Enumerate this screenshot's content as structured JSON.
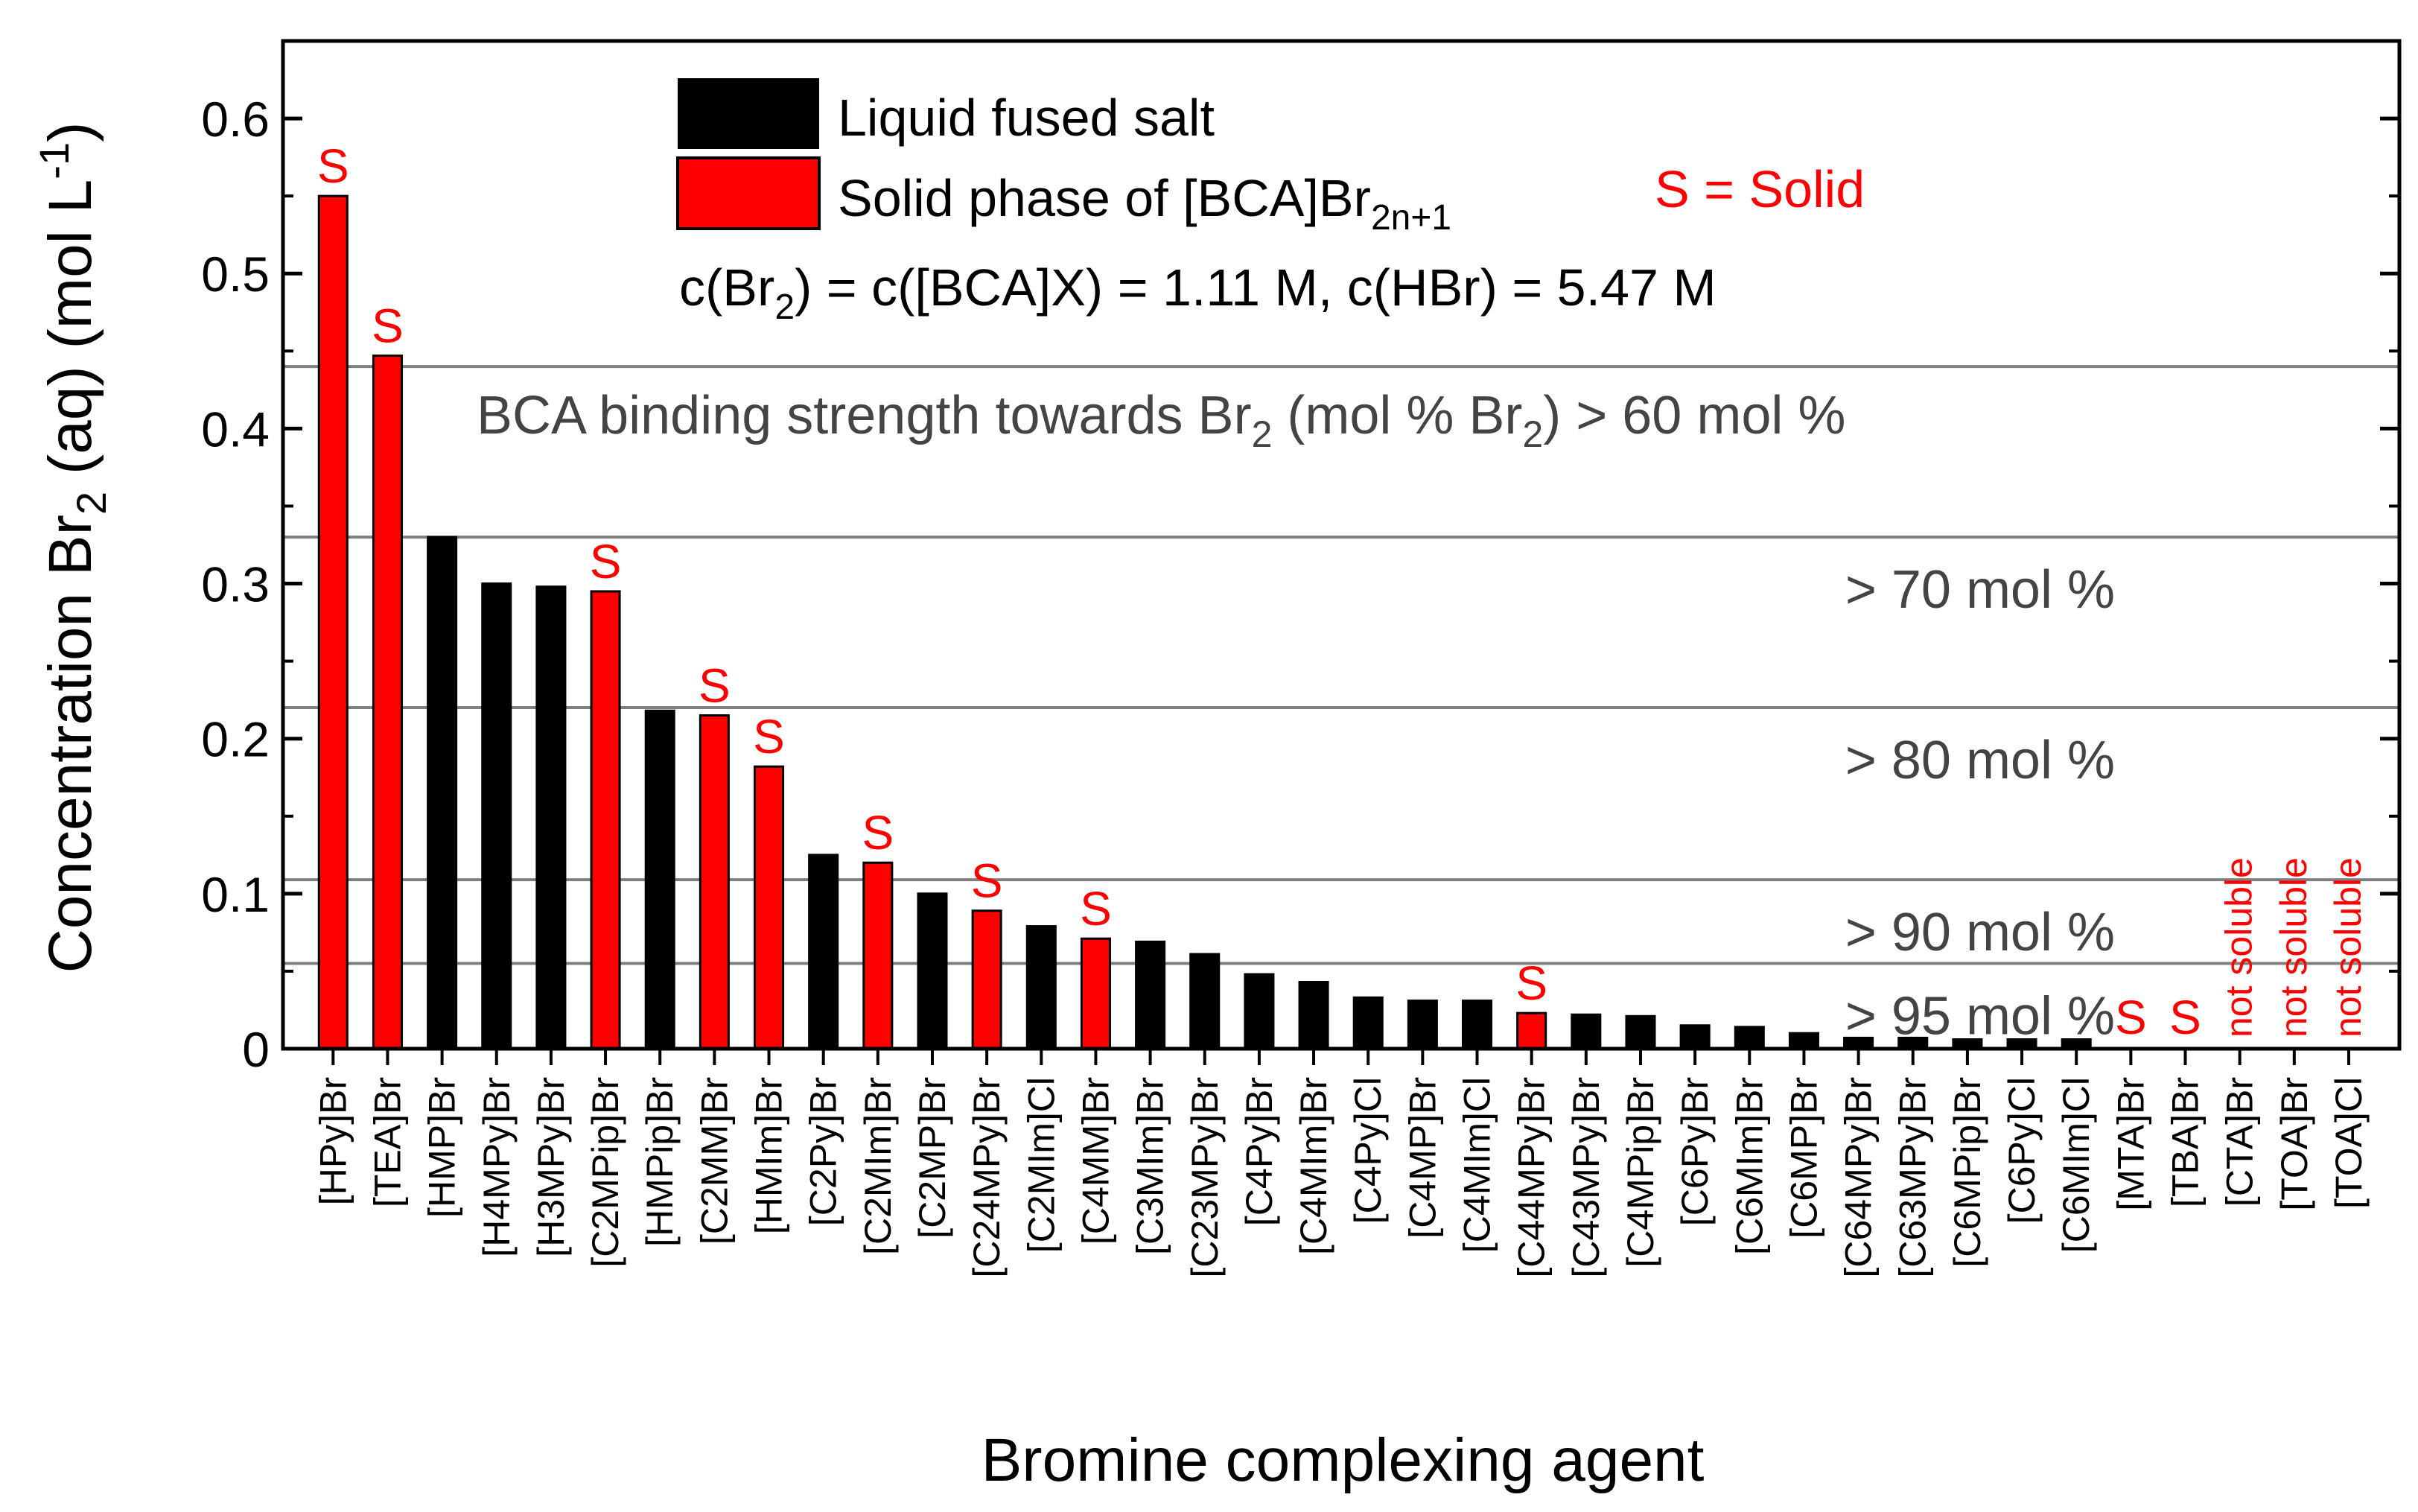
{
  "chart_data": {
    "type": "bar",
    "xlabel": "Bromine complexing agent",
    "ylabel_parts": {
      "pre": "Concentration Br",
      "sub": "2",
      "mid": " (aq) (mol L",
      "sup": "-1",
      "post": ")"
    },
    "ylim": [
      0,
      0.65
    ],
    "yticks": [
      "0",
      "0.1",
      "0.2",
      "0.3",
      "0.4",
      "0.5",
      "0.6"
    ],
    "ytick_values": [
      0,
      0.1,
      0.2,
      0.3,
      0.4,
      0.5,
      0.6
    ],
    "colors": {
      "liquid": "#000000",
      "solid": "#ff0000",
      "reference": "#808080",
      "marker": "#ff0000"
    },
    "legend": {
      "liquid_label": "Liquid fused salt",
      "solid_label_parts": {
        "pre": "Solid phase of [BCA]Br",
        "sub": "2n+1"
      },
      "solid_note": "S = Solid",
      "condition_parts": {
        "t1": "c(Br",
        "s1": "2",
        "t2": ") = c([BCA]X) = 1.11 M, c(HBr) = 5.47 M"
      }
    },
    "binding_title_parts": {
      "t1": "BCA binding strength towards Br",
      "s1": "2",
      "t2": " (mol % Br",
      "s2": "2",
      "t3": ") > 60 mol %"
    },
    "reference_lines": [
      {
        "y": 0.44,
        "label": ""
      },
      {
        "y": 0.33,
        "label": "> 70 mol %"
      },
      {
        "y": 0.22,
        "label": "> 80 mol %"
      },
      {
        "y": 0.109,
        "label": "> 90 mol %"
      },
      {
        "y": 0.055,
        "label": "> 95 mol %"
      }
    ],
    "solid_marker": "S",
    "not_soluble_text": "not soluble",
    "categories": [
      "[HPy]Br",
      "[TEA]Br",
      "[HMP]Br",
      "[H4MPy]Br",
      "[H3MPy]Br",
      "[C2MPip]Br",
      "[HMPip]Br",
      "[C2MM]Br",
      "[HMIm]Br",
      "[C2Py]Br",
      "[C2MIm]Br",
      "[C2MP]Br",
      "[C24MPy]Br",
      "[C2MIm]Cl",
      "[C4MM]Br",
      "[C3MIm]Br",
      "[C23MPy]Br",
      "[C4Py]Br",
      "[C4MIm]Br",
      "[C4Py]Cl",
      "[C4MP]Br",
      "[C4MIm]Cl",
      "[C44MPy]Br",
      "[C43MPy]Br",
      "[C4MPip]Br",
      "[C6Py]Br",
      "[C6MIm]Br",
      "[C6MP]Br",
      "[C64MPy]Br",
      "[C63MPy]Br",
      "[C6MPip]Br",
      "[C6Py]Cl",
      "[C6MIm]Cl",
      "[MTA]Br",
      "[TBA]Br",
      "[CTA]Br",
      "[TOA]Br",
      "[TOA]Cl"
    ],
    "values": [
      0.55,
      0.447,
      0.33,
      0.3,
      0.298,
      0.295,
      0.218,
      0.215,
      0.182,
      0.125,
      0.12,
      0.1,
      0.089,
      0.079,
      0.071,
      0.069,
      0.061,
      0.048,
      0.043,
      0.033,
      0.031,
      0.031,
      0.023,
      0.022,
      0.021,
      0.015,
      0.014,
      0.01,
      0.007,
      0.007,
      0.006,
      0.006,
      0.006,
      0,
      0,
      0,
      0,
      0
    ],
    "phase": [
      "solid",
      "solid",
      "liquid",
      "liquid",
      "liquid",
      "solid",
      "liquid",
      "solid",
      "solid",
      "liquid",
      "solid",
      "liquid",
      "solid",
      "liquid",
      "solid",
      "liquid",
      "liquid",
      "liquid",
      "liquid",
      "liquid",
      "liquid",
      "liquid",
      "solid",
      "liquid",
      "liquid",
      "liquid",
      "liquid",
      "liquid",
      "liquid",
      "liquid",
      "liquid",
      "liquid",
      "liquid",
      "solid",
      "solid",
      "not_soluble",
      "not_soluble",
      "not_soluble"
    ]
  }
}
